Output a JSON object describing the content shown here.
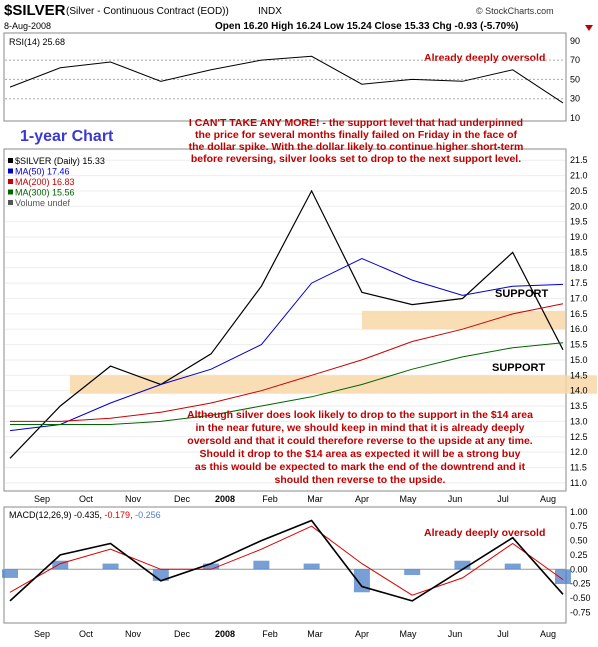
{
  "header": {
    "symbol": "$SILVER",
    "contract": "(Silver - Continuous Contract (EOD))",
    "exchange": "INDX",
    "date": "8-Aug-2008",
    "quote": "Open 16.20  High 16.24  Low 15.24  Close 15.33  Chg -0.93 (-5.70%)",
    "watermark": "© StockCharts.com"
  },
  "rsi_panel": {
    "label": "RSI(14) 25.68",
    "annotation": "Already deeply oversold",
    "ticks": [
      "90",
      "70",
      "50",
      "30",
      "10"
    ]
  },
  "price_panel": {
    "chart_label": "1-year Chart",
    "legend": [
      {
        "text": "$SILVER (Daily) 15.33",
        "color": "#000000"
      },
      {
        "text": "MA(50) 17.46",
        "color": "#0000cc"
      },
      {
        "text": "MA(200) 16.83",
        "color": "#cc0000"
      },
      {
        "text": "MA(300) 15.56",
        "color": "#006600"
      },
      {
        "text": "Volume undef",
        "color": "#555555"
      }
    ],
    "annotation_top": [
      "I CAN'T TAKE ANY MORE! - the support level that had underpinned",
      "the price for several months finally failed on Friday in the face of",
      "the dollar spike. With the dollar likely to continue higher short-term",
      "before reversing, silver looks set to drop to the next support level."
    ],
    "annotation_bottom": [
      "Although silver does look likely to drop to the support in the $14 area",
      "in the near future, we should keep in mind that it is already deeply",
      "oversold and that it could therefore reverse to the upside at any time.",
      "Should it drop to the $14 area as expected it will be a strong buy",
      "as this would be expected to mark the end of the downtrend and it",
      "should then reverse to the upside."
    ],
    "support_upper_label": "SUPPORT",
    "support_lower_label": "SUPPORT",
    "ticks": [
      "21.5",
      "21.0",
      "20.5",
      "20.0",
      "19.5",
      "19.0",
      "18.5",
      "18.0",
      "17.5",
      "17.0",
      "16.5",
      "16.0",
      "15.5",
      "15.0",
      "14.5",
      "14.0",
      "13.5",
      "13.0",
      "12.5",
      "12.0",
      "11.5",
      "11.0"
    ]
  },
  "macd_panel": {
    "label_prefix": "MACD(12,26,9) -0.435,",
    "label_sig": " -0.179,",
    "label_hist": " -0.256",
    "annotation": "Already deeply oversold",
    "ticks": [
      "1.00",
      "0.75",
      "0.50",
      "0.25",
      "0.00",
      "-0.25",
      "-0.50",
      "-0.75"
    ]
  },
  "months": [
    "Sep",
    "Oct",
    "Nov",
    "Dec",
    "2008",
    "Feb",
    "Mar",
    "Apr",
    "May",
    "Jun",
    "Jul",
    "Aug"
  ],
  "colors": {
    "price": "#000000",
    "ma50": "#0000cc",
    "ma200": "#cc0000",
    "ma300": "#006600",
    "support_band": "#f8d7a8",
    "annotation": "#c00000",
    "rsi_fill": "#4a8a3a",
    "macd_hist": "#4a7fc8",
    "macd_signal": "#dd0000"
  },
  "chart_data": [
    {
      "type": "line",
      "title": "RSI(14)",
      "x": [
        "Sep",
        "Oct",
        "Nov",
        "Dec",
        "2008",
        "Feb",
        "Mar",
        "Apr",
        "May",
        "Jun",
        "Jul",
        "Aug"
      ],
      "series": [
        {
          "name": "RSI(14)",
          "values": [
            42,
            62,
            68,
            48,
            60,
            70,
            74,
            45,
            50,
            48,
            60,
            25.68
          ]
        }
      ],
      "ylim": [
        10,
        95
      ],
      "reference_lines": [
        30,
        50,
        70
      ]
    },
    {
      "type": "line",
      "title": "$SILVER (Daily)",
      "x": [
        "Sep",
        "Oct",
        "Nov",
        "Dec",
        "2008",
        "Feb",
        "Mar",
        "Apr",
        "May",
        "Jun",
        "Jul",
        "Aug"
      ],
      "series": [
        {
          "name": "$SILVER (Daily)",
          "values": [
            11.8,
            13.5,
            14.8,
            14.2,
            15.2,
            17.4,
            20.5,
            17.2,
            16.8,
            17.0,
            18.5,
            15.33
          ]
        },
        {
          "name": "MA(50)",
          "values": [
            12.7,
            12.9,
            13.6,
            14.2,
            14.7,
            15.5,
            17.5,
            18.3,
            17.6,
            17.1,
            17.4,
            17.46
          ]
        },
        {
          "name": "MA(200)",
          "values": [
            13.0,
            13.0,
            13.1,
            13.3,
            13.6,
            14.0,
            14.5,
            15.0,
            15.6,
            16.0,
            16.5,
            16.83
          ]
        },
        {
          "name": "MA(300)",
          "values": [
            12.9,
            12.9,
            12.9,
            13.0,
            13.2,
            13.5,
            13.8,
            14.2,
            14.7,
            15.1,
            15.4,
            15.56
          ]
        }
      ],
      "ylim": [
        10.8,
        21.8
      ],
      "support_zones": [
        [
          16.0,
          16.6
        ],
        [
          13.9,
          14.5
        ]
      ]
    },
    {
      "type": "line",
      "title": "MACD(12,26,9)",
      "x": [
        "Sep",
        "Oct",
        "Nov",
        "Dec",
        "2008",
        "Feb",
        "Mar",
        "Apr",
        "May",
        "Jun",
        "Jul",
        "Aug"
      ],
      "series": [
        {
          "name": "MACD",
          "values": [
            -0.55,
            0.25,
            0.45,
            -0.2,
            0.1,
            0.5,
            0.85,
            -0.3,
            -0.55,
            0.0,
            0.55,
            -0.435
          ]
        },
        {
          "name": "Signal",
          "values": [
            -0.4,
            0.1,
            0.35,
            0.0,
            0.0,
            0.35,
            0.75,
            0.1,
            -0.45,
            -0.15,
            0.45,
            -0.179
          ]
        },
        {
          "name": "Histogram",
          "values": [
            -0.15,
            0.15,
            0.1,
            -0.2,
            0.1,
            0.15,
            0.1,
            -0.4,
            -0.1,
            0.15,
            0.1,
            -0.256
          ]
        }
      ],
      "ylim": [
        -0.9,
        1.05
      ]
    }
  ]
}
